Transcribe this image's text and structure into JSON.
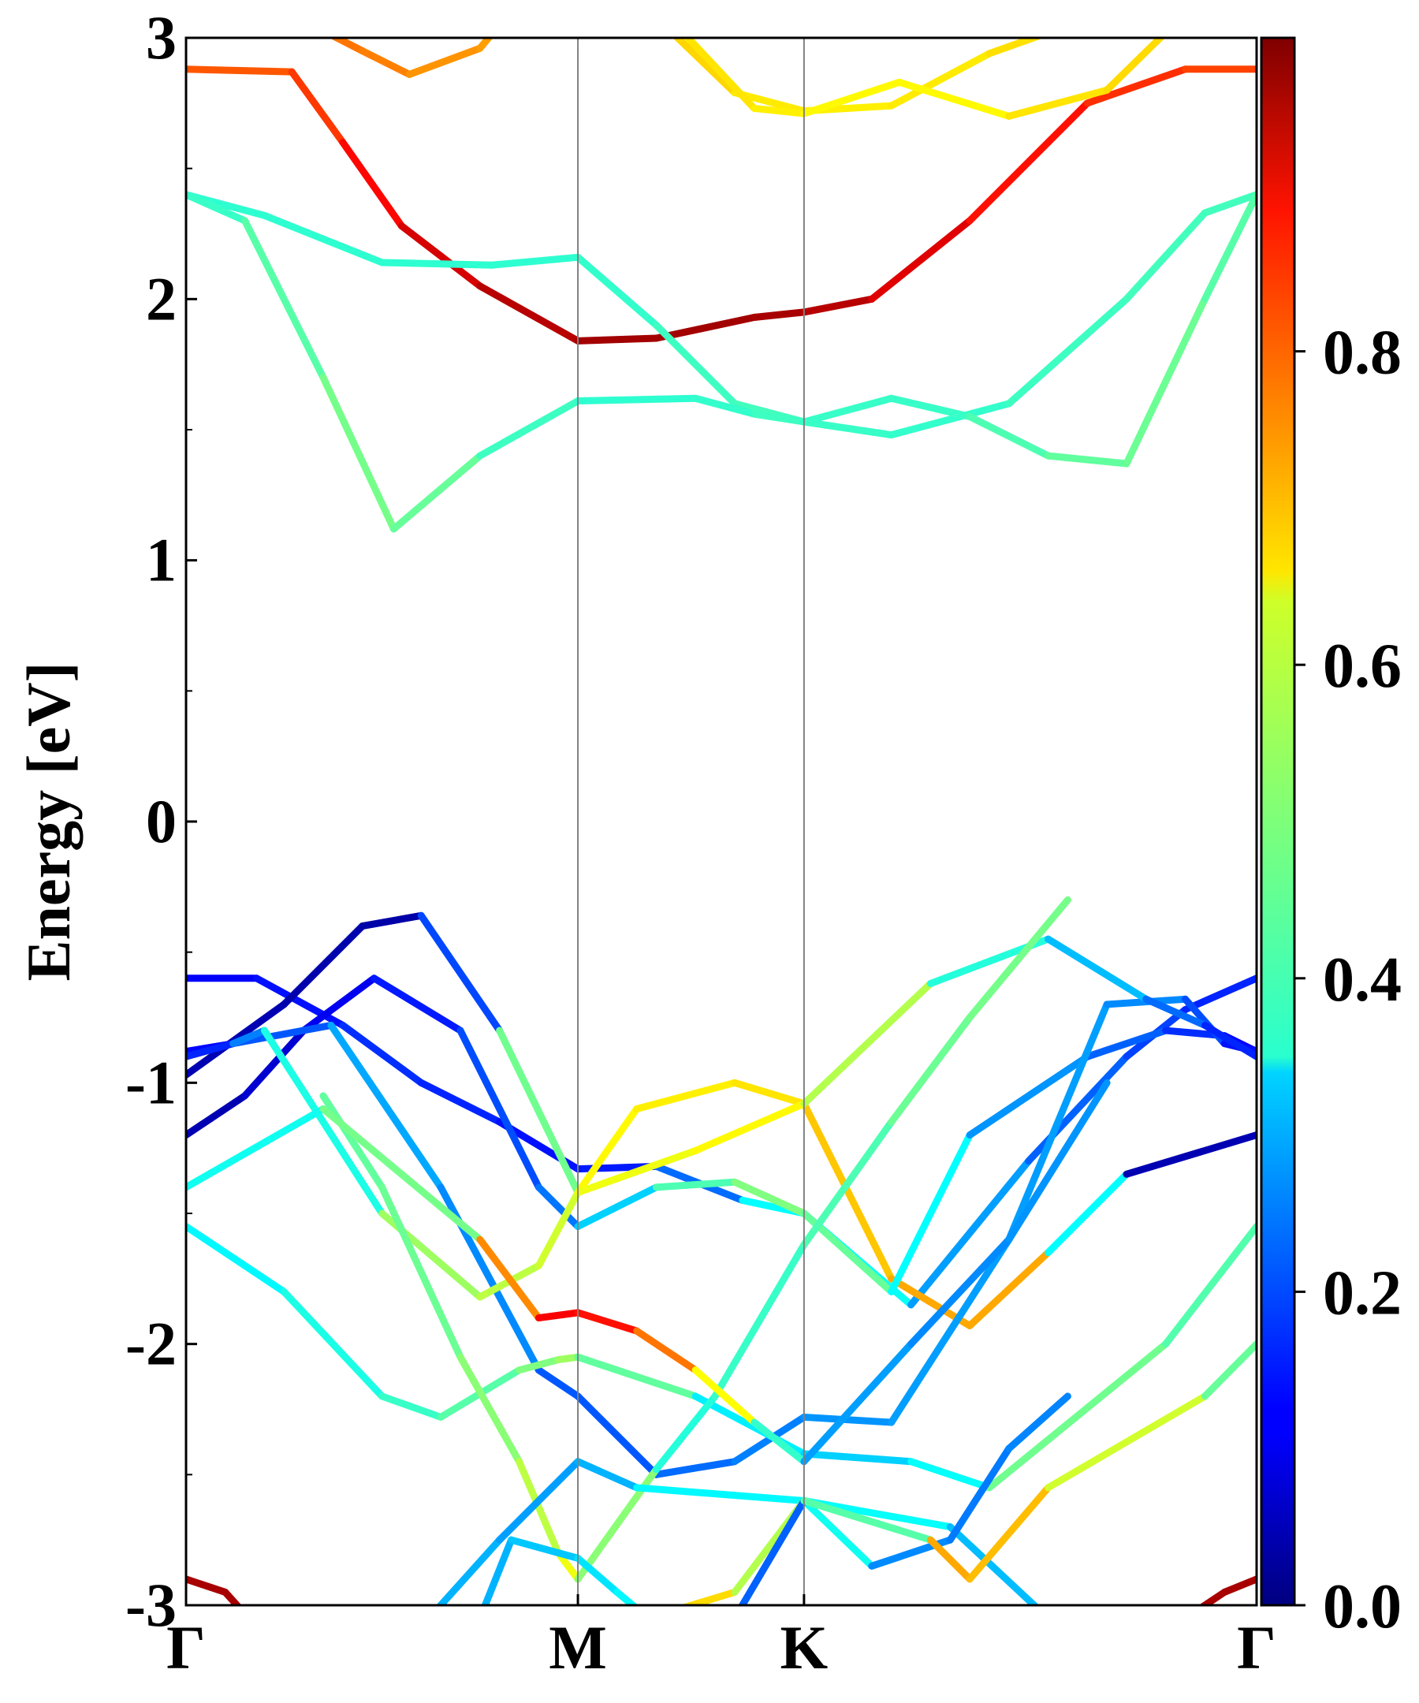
{
  "chart_data": {
    "type": "line",
    "ylabel": "Energy [eV]",
    "ylim": [
      -3,
      3
    ],
    "yticks": [
      "3",
      "2",
      "1",
      "0",
      "-1",
      "-2",
      "-3"
    ],
    "ytick_values": [
      3,
      2,
      1,
      0,
      -1,
      -2,
      -3
    ],
    "kpoints": [
      {
        "label": "Γ",
        "x": 0.0
      },
      {
        "label": "M",
        "x": 1.0
      },
      {
        "label": "K",
        "x": 1.577
      },
      {
        "label": "Γ",
        "x": 2.732
      }
    ],
    "grid": false,
    "colorbar": {
      "colormap": "jet",
      "range": [
        0.0,
        1.0
      ],
      "ticks": [
        "0.0",
        "0.2",
        "0.4",
        "0.6",
        "0.8"
      ],
      "tick_values": [
        0.0,
        0.2,
        0.4,
        0.6,
        0.8
      ]
    },
    "series": [
      {
        "x": [
          0,
          0.27,
          0.4,
          0.55,
          0.75,
          1.0,
          1.2,
          1.45,
          1.577,
          1.75,
          2.0,
          2.3,
          2.55,
          2.732
        ],
        "y": [
          2.88,
          2.87,
          2.6,
          2.28,
          2.05,
          1.84,
          1.85,
          1.93,
          1.95,
          2.0,
          2.3,
          2.75,
          2.88,
          2.88
        ],
        "w": [
          0.78,
          0.8,
          0.84,
          0.9,
          0.93,
          0.96,
          0.97,
          0.96,
          0.96,
          0.93,
          0.88,
          0.84,
          0.82,
          0.8
        ]
      },
      {
        "x": [
          0,
          0.2,
          0.5,
          0.78,
          1.0,
          1.2,
          1.4,
          1.577,
          1.8,
          2.1,
          2.4,
          2.6,
          2.732
        ],
        "y": [
          2.4,
          2.32,
          2.14,
          2.13,
          2.16,
          1.9,
          1.6,
          1.53,
          1.48,
          1.6,
          2.0,
          2.33,
          2.4
        ],
        "w": [
          0.42,
          0.42,
          0.42,
          0.42,
          0.42,
          0.43,
          0.44,
          0.44,
          0.42,
          0.43,
          0.44,
          0.44,
          0.44
        ]
      },
      {
        "x": [
          0,
          0.15,
          0.35,
          0.53,
          0.75,
          1.0,
          1.3,
          1.45,
          1.577,
          1.8,
          2.0,
          2.2,
          2.4,
          2.6,
          2.732
        ],
        "y": [
          2.4,
          2.3,
          1.7,
          1.12,
          1.4,
          1.61,
          1.62,
          1.56,
          1.53,
          1.62,
          1.55,
          1.4,
          1.37,
          2.0,
          2.4
        ],
        "w": [
          0.42,
          0.44,
          0.48,
          0.5,
          0.45,
          0.42,
          0.42,
          0.43,
          0.44,
          0.42,
          0.44,
          0.46,
          0.48,
          0.48,
          0.44
        ]
      },
      {
        "x": [
          0.32,
          0.45,
          0.57,
          0.75,
          0.8
        ],
        "y": [
          3.05,
          2.95,
          2.86,
          2.96,
          3.05
        ],
        "w": [
          0.76,
          0.76,
          0.74,
          0.72,
          0.72
        ]
      },
      {
        "x": [
          1.22,
          1.4,
          1.577,
          1.8,
          2.05,
          2.2,
          2.3
        ],
        "y": [
          3.05,
          2.79,
          2.72,
          2.74,
          2.94,
          3.02,
          3.05
        ],
        "w": [
          0.68,
          0.65,
          0.64,
          0.64,
          0.65,
          0.66,
          0.66
        ]
      },
      {
        "x": [
          1.25,
          1.45,
          1.577,
          1.82,
          2.1,
          2.35,
          2.52
        ],
        "y": [
          3.05,
          2.73,
          2.71,
          2.83,
          2.7,
          2.8,
          3.05
        ],
        "w": [
          0.66,
          0.64,
          0.64,
          0.62,
          0.64,
          0.66,
          0.66
        ]
      },
      {
        "x": [
          0,
          0.18,
          0.4,
          0.6,
          0.8,
          1.0,
          1.2,
          1.42,
          1.577,
          1.85,
          2.15,
          2.4,
          2.55,
          2.732
        ],
        "y": [
          -0.6,
          -0.6,
          -0.78,
          -1.0,
          -1.15,
          -1.33,
          -1.32,
          -1.45,
          -1.5,
          -1.85,
          -1.3,
          -0.9,
          -0.72,
          -0.6
        ],
        "w": [
          0.12,
          0.12,
          0.16,
          0.18,
          0.14,
          0.14,
          0.16,
          0.3,
          0.45,
          0.32,
          0.24,
          0.2,
          0.18,
          0.14
        ]
      },
      {
        "x": [
          0,
          0.25,
          0.45,
          0.6,
          0.8,
          1.0,
          1.15,
          1.4,
          1.577,
          1.8,
          2.0,
          2.2,
          2.4,
          2.732
        ],
        "y": [
          -0.97,
          -0.7,
          -0.4,
          -0.36,
          -0.8,
          -1.42,
          -1.1,
          -1.0,
          -1.08,
          -1.75,
          -1.93,
          -1.65,
          -1.35,
          -1.2
        ],
        "w": [
          0.05,
          0.05,
          0.04,
          0.04,
          0.35,
          0.62,
          0.64,
          0.64,
          0.66,
          0.7,
          0.72,
          0.7,
          0.05,
          0.05
        ]
      },
      {
        "x": [
          0,
          0.15,
          0.3,
          0.48,
          0.7,
          0.9,
          1.0,
          1.2,
          1.4,
          1.577,
          1.8,
          2.0,
          2.3,
          2.5,
          2.65,
          2.732
        ],
        "y": [
          -1.2,
          -1.05,
          -0.8,
          -0.6,
          -0.8,
          -1.4,
          -1.55,
          -1.4,
          -1.38,
          -1.5,
          -1.8,
          -1.2,
          -0.9,
          -0.8,
          -0.82,
          -0.88
        ],
        "w": [
          0.04,
          0.06,
          0.1,
          0.12,
          0.18,
          0.22,
          0.26,
          0.4,
          0.5,
          0.5,
          0.45,
          0.3,
          0.24,
          0.2,
          0.14,
          0.12
        ]
      },
      {
        "x": [
          0,
          0.12,
          0.37,
          0.65,
          0.9,
          1.0,
          1.2,
          1.4,
          1.577,
          1.8,
          2.1,
          2.35,
          2.55,
          2.65,
          2.732
        ],
        "y": [
          -0.88,
          -0.85,
          -0.78,
          -1.4,
          -2.1,
          -2.2,
          -2.5,
          -2.45,
          -2.28,
          -2.3,
          -1.6,
          -0.7,
          -0.68,
          -0.85,
          -0.88
        ],
        "w": [
          0.12,
          0.14,
          0.28,
          0.3,
          0.22,
          0.2,
          0.22,
          0.24,
          0.26,
          0.28,
          0.28,
          0.28,
          0.24,
          0.16,
          0.12
        ]
      },
      {
        "x": [
          0,
          0.12,
          0.2,
          0.5,
          0.75,
          0.9,
          1.0,
          1.3,
          1.577,
          1.9,
          2.2,
          2.45,
          2.6,
          2.732
        ],
        "y": [
          -0.9,
          -0.85,
          -0.8,
          -1.5,
          -1.82,
          -1.7,
          -1.42,
          -1.26,
          -1.08,
          -0.62,
          -0.45,
          -0.68,
          -0.78,
          -0.9
        ],
        "w": [
          0.12,
          0.2,
          0.3,
          0.5,
          0.56,
          0.56,
          0.6,
          0.62,
          0.64,
          0.46,
          0.36,
          0.26,
          0.2,
          0.12
        ]
      },
      {
        "x": [
          0,
          0.25,
          0.5,
          0.65,
          0.85,
          0.95,
          1.0,
          1.3,
          1.577,
          1.85,
          2.05,
          2.5,
          2.732
        ],
        "y": [
          -1.55,
          -1.8,
          -2.2,
          -2.28,
          -2.1,
          -2.06,
          -2.05,
          -2.2,
          -2.42,
          -2.45,
          -2.55,
          -2.0,
          -1.55
        ],
        "w": [
          0.36,
          0.38,
          0.42,
          0.44,
          0.48,
          0.52,
          0.54,
          0.4,
          0.32,
          0.34,
          0.42,
          0.55,
          0.36
        ]
      },
      {
        "x": [
          0.35,
          0.5,
          0.7,
          0.85,
          0.95,
          1.0,
          1.2,
          1.35,
          1.577,
          1.8,
          2.0,
          2.25
        ],
        "y": [
          -1.05,
          -1.4,
          -2.05,
          -2.45,
          -2.8,
          -2.9,
          -2.48,
          -2.2,
          -1.62,
          -1.15,
          -0.75,
          -0.3
        ],
        "w": [
          0.48,
          0.46,
          0.5,
          0.52,
          0.6,
          0.62,
          0.4,
          0.42,
          0.44,
          0.46,
          0.5,
          0.48
        ]
      },
      {
        "x": [
          0.0,
          0.35,
          0.75,
          0.9,
          1.0,
          1.15,
          1.3,
          1.45,
          1.577,
          1.85,
          2.1,
          2.35
        ],
        "y": [
          -1.4,
          -1.1,
          -1.6,
          -1.9,
          -1.88,
          -1.95,
          -2.1,
          -2.3,
          -2.45,
          -2.0,
          -1.6,
          -1.0
        ],
        "w": [
          0.42,
          0.36,
          0.62,
          0.86,
          0.9,
          0.82,
          0.7,
          0.55,
          0.3,
          0.26,
          0.26,
          0.28
        ]
      },
      {
        "x": [
          0.62,
          0.8,
          1.0,
          1.15,
          1.577,
          1.95,
          2.2
        ],
        "y": [
          -3.05,
          -2.75,
          -2.45,
          -2.55,
          -2.6,
          -2.7,
          -3.05
        ],
        "w": [
          0.3,
          0.3,
          0.26,
          0.34,
          0.4,
          0.36,
          0.26
        ]
      },
      {
        "x": [
          0.75,
          0.83,
          1.0,
          1.1,
          1.18
        ],
        "y": [
          -3.05,
          -2.75,
          -2.82,
          -2.95,
          -3.05
        ],
        "w": [
          0.3,
          0.3,
          0.34,
          0.36,
          0.38
        ]
      },
      {
        "x": [
          1.18,
          1.4,
          1.577,
          1.75,
          1.95,
          2.1,
          2.25
        ],
        "y": [
          -3.05,
          -2.95,
          -2.6,
          -2.85,
          -2.75,
          -2.4,
          -2.2
        ],
        "w": [
          0.72,
          0.6,
          0.5,
          0.28,
          0.24,
          0.25,
          0.26
        ]
      },
      {
        "x": [
          1.4,
          1.577,
          1.9,
          2.0,
          2.2,
          2.6,
          2.732
        ],
        "y": [
          -3.05,
          -2.6,
          -2.75,
          -2.9,
          -2.55,
          -2.2,
          -2.0
        ],
        "w": [
          0.22,
          0.22,
          0.7,
          0.72,
          0.66,
          0.5,
          0.45
        ]
      },
      {
        "x": [
          0,
          0.1,
          0.16
        ],
        "y": [
          -2.9,
          -2.95,
          -3.05
        ],
        "w": [
          0.96,
          0.96,
          0.96
        ]
      },
      {
        "x": [
          2.55,
          2.65,
          2.732
        ],
        "y": [
          -3.05,
          -2.95,
          -2.9
        ],
        "w": [
          0.96,
          0.96,
          0.96
        ]
      }
    ]
  }
}
